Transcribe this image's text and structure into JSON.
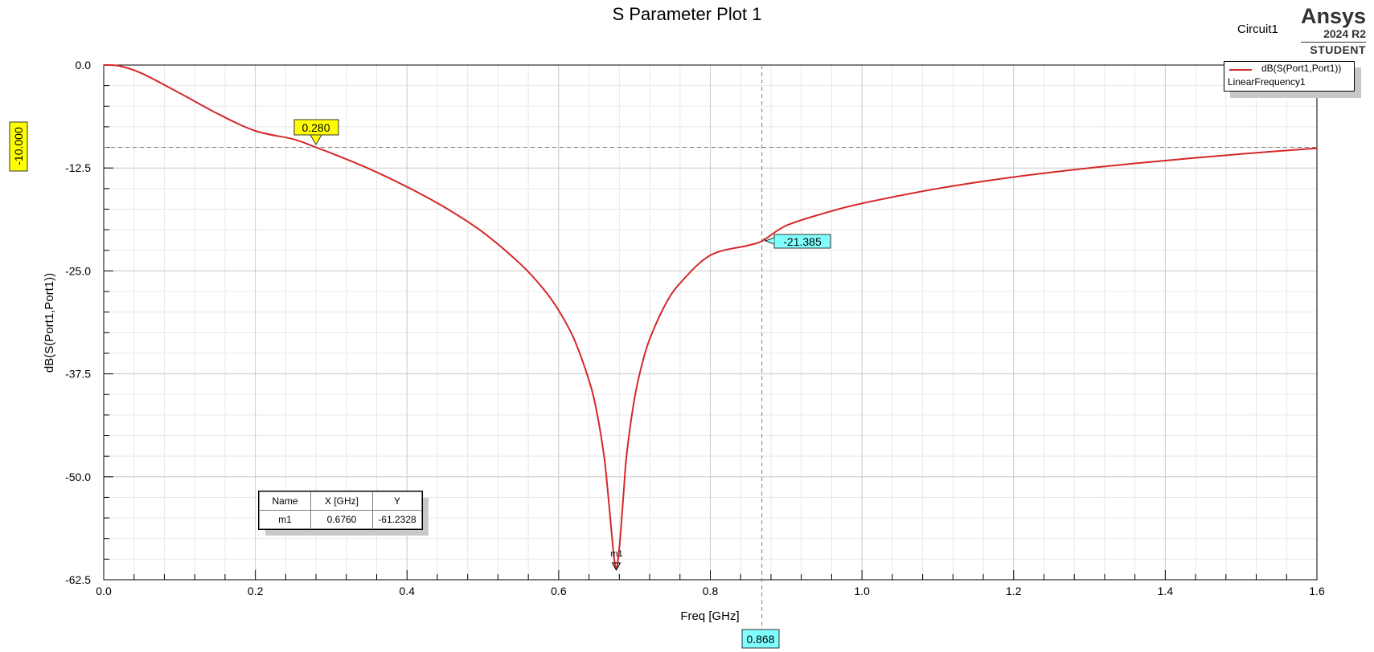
{
  "title": "S Parameter Plot 1",
  "design_name": "Circuit1",
  "brand": {
    "name": "Ansys",
    "version": "2024 R2",
    "edition": "STUDENT"
  },
  "legend": {
    "trace": "dB(S(Port1,Port1))",
    "setup": "LinearFrequency1",
    "color": "#d62728"
  },
  "marker_table": {
    "headers": [
      "Name",
      "X [GHz]",
      "Y"
    ],
    "rows": [
      [
        "m1",
        "0.6760",
        "-61.2328"
      ]
    ]
  },
  "markers": {
    "m1": {
      "label": "m1",
      "x": 0.676,
      "y": -61.2328
    },
    "x_marker_1": {
      "label": "0.280",
      "x": 0.28,
      "y": -10.0,
      "color": "#ffff00"
    },
    "y_marker_label": {
      "label": "-10.000",
      "y": -10.0,
      "color": "#ffff00"
    },
    "x_marker_2": {
      "label": "0.868",
      "x": 0.868,
      "color": "#80ffff"
    },
    "y_marker_2_label": {
      "label": "-21.385",
      "x": 0.868,
      "y": -21.385,
      "color": "#80ffff"
    }
  },
  "chart_data": {
    "type": "line",
    "title": "S Parameter Plot 1",
    "xlabel": "Freq [GHz]",
    "ylabel": "dB(S(Port1,Port1))",
    "xlim": [
      0.0,
      1.6
    ],
    "ylim": [
      -62.5,
      0.0
    ],
    "x_ticks": [
      "0.0",
      "0.2",
      "0.4",
      "0.6",
      "0.8",
      "1.0",
      "1.2",
      "1.4",
      "1.6"
    ],
    "y_ticks": [
      "0.0",
      "-12.5",
      "-25.0",
      "-37.5",
      "-50.0",
      "-62.5"
    ],
    "grid": true,
    "legend_position": "top-right",
    "series": [
      {
        "name": "dB(S(Port1,Port1))",
        "color": "#d62728",
        "x": [
          0.0,
          0.02,
          0.05,
          0.1,
          0.15,
          0.2,
          0.25,
          0.28,
          0.3,
          0.35,
          0.4,
          0.45,
          0.5,
          0.55,
          0.58,
          0.6,
          0.62,
          0.64,
          0.65,
          0.66,
          0.665,
          0.67,
          0.673,
          0.676,
          0.679,
          0.682,
          0.686,
          0.69,
          0.7,
          0.71,
          0.72,
          0.74,
          0.76,
          0.8,
          0.85,
          0.868,
          0.9,
          0.95,
          1.0,
          1.1,
          1.2,
          1.3,
          1.4,
          1.5,
          1.6
        ],
        "y": [
          0.0,
          -0.1,
          -1.0,
          -3.4,
          -5.9,
          -8.0,
          -9.0,
          -10.0,
          -10.7,
          -12.6,
          -14.8,
          -17.3,
          -20.3,
          -24.2,
          -27.2,
          -29.8,
          -33.2,
          -38.3,
          -42.0,
          -47.6,
          -52.0,
          -57.0,
          -59.8,
          -61.2,
          -59.5,
          -56.5,
          -51.5,
          -47.0,
          -40.5,
          -36.3,
          -33.3,
          -29.2,
          -26.5,
          -23.1,
          -21.9,
          -21.385,
          -19.5,
          -18.0,
          -16.8,
          -15.0,
          -13.6,
          -12.5,
          -11.6,
          -10.8,
          -10.1
        ]
      }
    ]
  }
}
